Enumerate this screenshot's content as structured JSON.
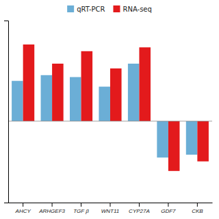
{
  "chart_data": {
    "type": "bar",
    "categories": [
      "AHCY",
      "ARHGEF3",
      "TGF β",
      "WNT11",
      "CYP27A",
      "GDF7",
      "CKB"
    ],
    "series": [
      {
        "name": "qRT-PCR",
        "color": "#6baed6",
        "values": [
          0.42,
          0.48,
          0.46,
          0.36,
          0.6,
          -0.38,
          -0.35
        ]
      },
      {
        "name": "RNA-seq",
        "color": "#e31a1c",
        "values": [
          0.8,
          0.6,
          0.73,
          0.55,
          0.77,
          -0.52,
          -0.42
        ]
      }
    ],
    "ylim": [
      -0.85,
      1.05
    ],
    "legend": "top",
    "grid": false,
    "tick_labels": "x"
  }
}
